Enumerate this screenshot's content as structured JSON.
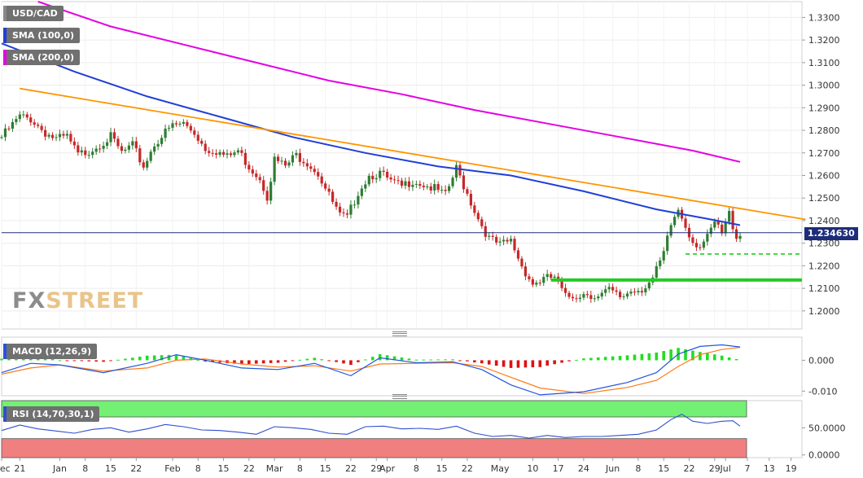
{
  "instrument": "USD/CAD",
  "watermark": {
    "part1": "FX",
    "part2": "STREET"
  },
  "colors": {
    "sma100": "#1f3fd6",
    "sma200": "#e400e4",
    "trendline": "#ff9500",
    "support": "#22cc22",
    "price_line": "#1d2d7a",
    "candle_up": "#2e7d32",
    "candle_down": "#c62828",
    "macd_line": "#2255dd",
    "signal_line": "#ff7a1a",
    "hist_up": "#22dd22",
    "hist_down": "#dd1111",
    "rsi_line": "#2f4fd0",
    "rsi_overbought_zone": "#74f074",
    "rsi_oversold_zone": "#f08080"
  },
  "price_tag": "1.234630",
  "indicators": {
    "sma100_label": "SMA (100,0)",
    "sma200_label": "SMA (200,0)",
    "macd_label": "MACD (12,26,9)",
    "rsi_label": "RSI (14,70,30,1)"
  },
  "chart_data": [
    {
      "type": "candlestick",
      "title": "USD/CAD",
      "xlabel": "",
      "ylabel": "",
      "ylim": [
        1.192,
        1.337
      ],
      "y_ticks": [
        "1.2000",
        "1.2100",
        "1.2200",
        "1.2300",
        "1.2400",
        "1.2500",
        "1.2600",
        "1.2700",
        "1.2800",
        "1.2900",
        "1.3000",
        "1.3100",
        "1.3200",
        "1.3300"
      ],
      "x_ticks": [
        {
          "label": "Dec",
          "day": 0
        },
        {
          "label": "21",
          "day": 5
        },
        {
          "label": "Jan",
          "day": 16
        },
        {
          "label": "8",
          "day": 23
        },
        {
          "label": "15",
          "day": 30
        },
        {
          "label": "22",
          "day": 37
        },
        {
          "label": "Feb",
          "day": 47
        },
        {
          "label": "8",
          "day": 54
        },
        {
          "label": "15",
          "day": 61
        },
        {
          "label": "22",
          "day": 68
        },
        {
          "label": "Mar",
          "day": 75
        },
        {
          "label": "8",
          "day": 82
        },
        {
          "label": "15",
          "day": 89
        },
        {
          "label": "22",
          "day": 96
        },
        {
          "label": "29",
          "day": 103
        },
        {
          "label": "Apr",
          "day": 106
        },
        {
          "label": "8",
          "day": 114
        },
        {
          "label": "15",
          "day": 121
        },
        {
          "label": "22",
          "day": 128
        },
        {
          "label": "May",
          "day": 137
        },
        {
          "label": "10",
          "day": 146
        },
        {
          "label": "17",
          "day": 153
        },
        {
          "label": "24",
          "day": 160
        },
        {
          "label": "Jun",
          "day": 168
        },
        {
          "label": "8",
          "day": 175
        },
        {
          "label": "15",
          "day": 182
        },
        {
          "label": "22",
          "day": 189
        },
        {
          "label": "29",
          "day": 196
        },
        {
          "label": "Jul",
          "day": 199
        },
        {
          "label": "7",
          "day": 205
        },
        {
          "label": "13",
          "day": 211
        },
        {
          "label": "19",
          "day": 217
        }
      ],
      "close_series": [
        {
          "day": 0,
          "close": 1.277
        },
        {
          "day": 5,
          "close": 1.286
        },
        {
          "day": 8,
          "close": 1.285
        },
        {
          "day": 12,
          "close": 1.279
        },
        {
          "day": 15,
          "close": 1.276
        },
        {
          "day": 18,
          "close": 1.277
        },
        {
          "day": 21,
          "close": 1.269
        },
        {
          "day": 24,
          "close": 1.271
        },
        {
          "day": 27,
          "close": 1.274
        },
        {
          "day": 30,
          "close": 1.277
        },
        {
          "day": 33,
          "close": 1.27
        },
        {
          "day": 36,
          "close": 1.273
        },
        {
          "day": 39,
          "close": 1.264
        },
        {
          "day": 42,
          "close": 1.274
        },
        {
          "day": 45,
          "close": 1.279
        },
        {
          "day": 47,
          "close": 1.282
        },
        {
          "day": 50,
          "close": 1.283
        },
        {
          "day": 53,
          "close": 1.279
        },
        {
          "day": 56,
          "close": 1.272
        },
        {
          "day": 59,
          "close": 1.271
        },
        {
          "day": 62,
          "close": 1.268
        },
        {
          "day": 65,
          "close": 1.271
        },
        {
          "day": 68,
          "close": 1.264
        },
        {
          "day": 71,
          "close": 1.259
        },
        {
          "day": 73,
          "close": 1.251
        },
        {
          "day": 75,
          "close": 1.267
        },
        {
          "day": 78,
          "close": 1.264
        },
        {
          "day": 81,
          "close": 1.269
        },
        {
          "day": 84,
          "close": 1.266
        },
        {
          "day": 87,
          "close": 1.261
        },
        {
          "day": 90,
          "close": 1.251
        },
        {
          "day": 93,
          "close": 1.242
        },
        {
          "day": 95,
          "close": 1.241
        },
        {
          "day": 98,
          "close": 1.253
        },
        {
          "day": 101,
          "close": 1.26
        },
        {
          "day": 104,
          "close": 1.261
        },
        {
          "day": 107,
          "close": 1.257
        },
        {
          "day": 110,
          "close": 1.255
        },
        {
          "day": 113,
          "close": 1.258
        },
        {
          "day": 116,
          "close": 1.256
        },
        {
          "day": 119,
          "close": 1.254
        },
        {
          "day": 122,
          "close": 1.251
        },
        {
          "day": 125,
          "close": 1.263
        },
        {
          "day": 128,
          "close": 1.252
        },
        {
          "day": 131,
          "close": 1.241
        },
        {
          "day": 134,
          "close": 1.232
        },
        {
          "day": 137,
          "close": 1.229
        },
        {
          "day": 140,
          "close": 1.231
        },
        {
          "day": 143,
          "close": 1.22
        },
        {
          "day": 146,
          "close": 1.212
        },
        {
          "day": 149,
          "close": 1.214
        },
        {
          "day": 152,
          "close": 1.215
        },
        {
          "day": 155,
          "close": 1.206
        },
        {
          "day": 158,
          "close": 1.207
        },
        {
          "day": 161,
          "close": 1.208
        },
        {
          "day": 164,
          "close": 1.206
        },
        {
          "day": 167,
          "close": 1.209
        },
        {
          "day": 170,
          "close": 1.206
        },
        {
          "day": 173,
          "close": 1.209
        },
        {
          "day": 176,
          "close": 1.21
        },
        {
          "day": 179,
          "close": 1.214
        },
        {
          "day": 182,
          "close": 1.225
        },
        {
          "day": 184,
          "close": 1.238
        },
        {
          "day": 186,
          "close": 1.245
        },
        {
          "day": 188,
          "close": 1.238
        },
        {
          "day": 190,
          "close": 1.231
        },
        {
          "day": 192,
          "close": 1.229
        },
        {
          "day": 194,
          "close": 1.232
        },
        {
          "day": 196,
          "close": 1.239
        },
        {
          "day": 198,
          "close": 1.234
        },
        {
          "day": 200,
          "close": 1.243
        },
        {
          "day": 202,
          "close": 1.233
        },
        {
          "day": 203,
          "close": 1.2346
        }
      ],
      "sma100": [
        {
          "day": 0,
          "value": 1.3185
        },
        {
          "day": 20,
          "value": 1.306
        },
        {
          "day": 40,
          "value": 1.295
        },
        {
          "day": 60,
          "value": 1.286
        },
        {
          "day": 80,
          "value": 1.277
        },
        {
          "day": 100,
          "value": 1.27
        },
        {
          "day": 120,
          "value": 1.264
        },
        {
          "day": 140,
          "value": 1.26
        },
        {
          "day": 160,
          "value": 1.253
        },
        {
          "day": 180,
          "value": 1.245
        },
        {
          "day": 195,
          "value": 1.2405
        },
        {
          "day": 203,
          "value": 1.238
        }
      ],
      "sma200": [
        {
          "day": 10,
          "value": 1.337
        },
        {
          "day": 30,
          "value": 1.326
        },
        {
          "day": 50,
          "value": 1.318
        },
        {
          "day": 70,
          "value": 1.31
        },
        {
          "day": 90,
          "value": 1.302
        },
        {
          "day": 110,
          "value": 1.296
        },
        {
          "day": 130,
          "value": 1.289
        },
        {
          "day": 150,
          "value": 1.283
        },
        {
          "day": 170,
          "value": 1.277
        },
        {
          "day": 190,
          "value": 1.271
        },
        {
          "day": 203,
          "value": 1.266
        }
      ],
      "trendline": [
        {
          "day": 5,
          "value": 1.2985
        },
        {
          "day": 221,
          "value": 1.2405
        }
      ],
      "support_levels": [
        {
          "value": 1.2137,
          "from_day": 151,
          "style": "solid"
        },
        {
          "value": 1.2252,
          "from_day": 188,
          "style": "dashed"
        }
      ],
      "last_price": 1.23463
    },
    {
      "type": "macd",
      "title": "MACD (12,26,9)",
      "ylim": [
        -0.0115,
        0.0075
      ],
      "y_ticks": [
        "0.000",
        "-0.010"
      ],
      "macd_line": [
        {
          "day": 0,
          "value": -0.004
        },
        {
          "day": 8,
          "value": -0.001
        },
        {
          "day": 16,
          "value": -0.0015
        },
        {
          "day": 28,
          "value": -0.004
        },
        {
          "day": 40,
          "value": -0.001
        },
        {
          "day": 48,
          "value": 0.0018
        },
        {
          "day": 56,
          "value": 0.0
        },
        {
          "day": 66,
          "value": -0.0025
        },
        {
          "day": 76,
          "value": -0.003
        },
        {
          "day": 86,
          "value": -0.001
        },
        {
          "day": 96,
          "value": -0.005
        },
        {
          "day": 104,
          "value": 0.0008
        },
        {
          "day": 114,
          "value": -0.0008
        },
        {
          "day": 124,
          "value": -0.0005
        },
        {
          "day": 132,
          "value": -0.003
        },
        {
          "day": 140,
          "value": -0.008
        },
        {
          "day": 148,
          "value": -0.0112
        },
        {
          "day": 160,
          "value": -0.0102
        },
        {
          "day": 172,
          "value": -0.0072
        },
        {
          "day": 180,
          "value": -0.004
        },
        {
          "day": 186,
          "value": 0.002
        },
        {
          "day": 192,
          "value": 0.0045
        },
        {
          "day": 198,
          "value": 0.005
        },
        {
          "day": 203,
          "value": 0.0043
        }
      ],
      "signal_line": [
        {
          "day": 0,
          "value": -0.0045
        },
        {
          "day": 8,
          "value": -0.0025
        },
        {
          "day": 16,
          "value": -0.0015
        },
        {
          "day": 28,
          "value": -0.0035
        },
        {
          "day": 40,
          "value": -0.0025
        },
        {
          "day": 48,
          "value": 0.0
        },
        {
          "day": 56,
          "value": 0.0004
        },
        {
          "day": 66,
          "value": -0.0012
        },
        {
          "day": 76,
          "value": -0.0022
        },
        {
          "day": 86,
          "value": -0.0018
        },
        {
          "day": 96,
          "value": -0.0035
        },
        {
          "day": 104,
          "value": -0.0012
        },
        {
          "day": 114,
          "value": -0.001
        },
        {
          "day": 124,
          "value": -0.0008
        },
        {
          "day": 132,
          "value": -0.002
        },
        {
          "day": 140,
          "value": -0.0055
        },
        {
          "day": 148,
          "value": -0.009
        },
        {
          "day": 160,
          "value": -0.0108
        },
        {
          "day": 172,
          "value": -0.0088
        },
        {
          "day": 180,
          "value": -0.0065
        },
        {
          "day": 186,
          "value": -0.002
        },
        {
          "day": 192,
          "value": 0.0018
        },
        {
          "day": 198,
          "value": 0.0035
        },
        {
          "day": 203,
          "value": 0.0042
        }
      ]
    },
    {
      "type": "line",
      "title": "RSI (14,70,30,1)",
      "ylim": [
        -5,
        100
      ],
      "y_ticks": [
        "50.0000",
        "0.0000"
      ],
      "overbought": 70,
      "oversold": 30,
      "rsi_line": [
        {
          "day": 0,
          "value": 45
        },
        {
          "day": 5,
          "value": 55
        },
        {
          "day": 10,
          "value": 48
        },
        {
          "day": 15,
          "value": 44
        },
        {
          "day": 20,
          "value": 40
        },
        {
          "day": 25,
          "value": 47
        },
        {
          "day": 30,
          "value": 50
        },
        {
          "day": 35,
          "value": 42
        },
        {
          "day": 40,
          "value": 48
        },
        {
          "day": 45,
          "value": 56
        },
        {
          "day": 50,
          "value": 52
        },
        {
          "day": 55,
          "value": 46
        },
        {
          "day": 60,
          "value": 45
        },
        {
          "day": 65,
          "value": 42
        },
        {
          "day": 70,
          "value": 38
        },
        {
          "day": 75,
          "value": 52
        },
        {
          "day": 80,
          "value": 50
        },
        {
          "day": 85,
          "value": 47
        },
        {
          "day": 90,
          "value": 40
        },
        {
          "day": 95,
          "value": 38
        },
        {
          "day": 100,
          "value": 52
        },
        {
          "day": 105,
          "value": 53
        },
        {
          "day": 110,
          "value": 48
        },
        {
          "day": 115,
          "value": 49
        },
        {
          "day": 120,
          "value": 47
        },
        {
          "day": 125,
          "value": 53
        },
        {
          "day": 130,
          "value": 40
        },
        {
          "day": 135,
          "value": 34
        },
        {
          "day": 140,
          "value": 36
        },
        {
          "day": 145,
          "value": 31
        },
        {
          "day": 150,
          "value": 36
        },
        {
          "day": 155,
          "value": 32
        },
        {
          "day": 160,
          "value": 34
        },
        {
          "day": 165,
          "value": 34
        },
        {
          "day": 170,
          "value": 36
        },
        {
          "day": 175,
          "value": 38
        },
        {
          "day": 180,
          "value": 46
        },
        {
          "day": 184,
          "value": 65
        },
        {
          "day": 187,
          "value": 75
        },
        {
          "day": 190,
          "value": 62
        },
        {
          "day": 194,
          "value": 58
        },
        {
          "day": 198,
          "value": 62
        },
        {
          "day": 201,
          "value": 63
        },
        {
          "day": 203,
          "value": 53
        }
      ]
    }
  ]
}
